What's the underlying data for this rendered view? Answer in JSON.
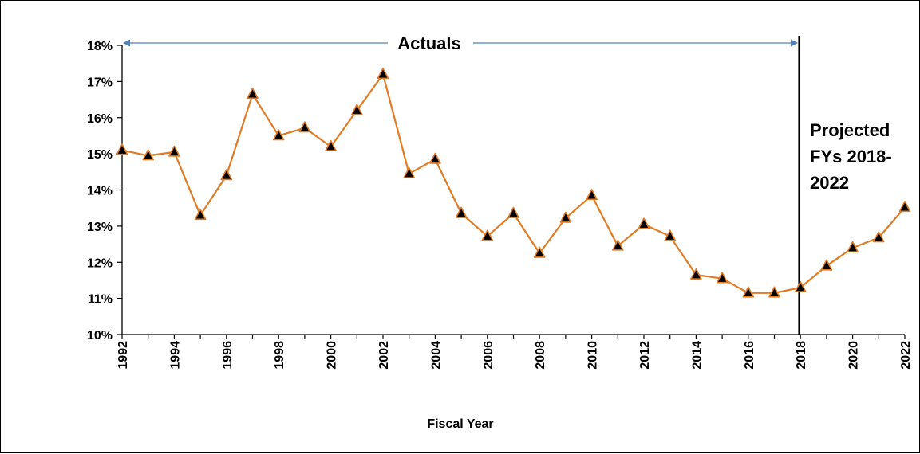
{
  "chart_data": {
    "type": "line",
    "title": "",
    "xlabel": "Fiscal Year",
    "ylabel": "",
    "ylim": [
      10,
      18
    ],
    "xlim": [
      1992,
      2022
    ],
    "y_ticks": [
      "10%",
      "11%",
      "12%",
      "13%",
      "14%",
      "15%",
      "16%",
      "17%",
      "18%"
    ],
    "x_ticks": [
      "1992",
      "1994",
      "1996",
      "1998",
      "2000",
      "2002",
      "2004",
      "2006",
      "2008",
      "2010",
      "2012",
      "2014",
      "2016",
      "2018",
      "2020",
      "2022"
    ],
    "grid": false,
    "series": [
      {
        "color": "#E07B24",
        "marker_color": "#000000",
        "x": [
          1992,
          1993,
          1994,
          1995,
          1996,
          1997,
          1998,
          1999,
          2000,
          2001,
          2002,
          2003,
          2004,
          2005,
          2006,
          2007,
          2008,
          2009,
          2010,
          2011,
          2012,
          2013,
          2014,
          2015,
          2016,
          2017,
          2018,
          2019,
          2020,
          2021,
          2022
        ],
        "values": [
          15.1,
          14.95,
          15.05,
          13.3,
          14.4,
          16.65,
          15.5,
          15.72,
          15.2,
          16.2,
          17.2,
          14.45,
          14.85,
          13.35,
          12.72,
          13.35,
          12.25,
          13.22,
          13.85,
          12.45,
          13.05,
          12.72,
          11.65,
          11.55,
          11.15,
          11.15,
          11.3,
          11.9,
          12.4,
          12.68,
          13.52
        ]
      }
    ],
    "annotations": {
      "actuals_label": "Actuals",
      "projected_label_line1": "Projected",
      "projected_label_line2": "FYs 2018-",
      "projected_label_line3": "2022",
      "arrow_color": "#4F81BD",
      "divider_year": 2018
    }
  }
}
